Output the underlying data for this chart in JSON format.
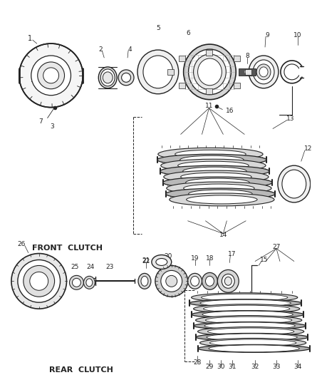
{
  "background_color": "#ffffff",
  "line_color": "#222222",
  "front_clutch_label": "FRONT  CLUTCH",
  "rear_clutch_label": "REAR  CLUTCH",
  "figsize": [
    4.38,
    5.33
  ],
  "dpi": 100
}
